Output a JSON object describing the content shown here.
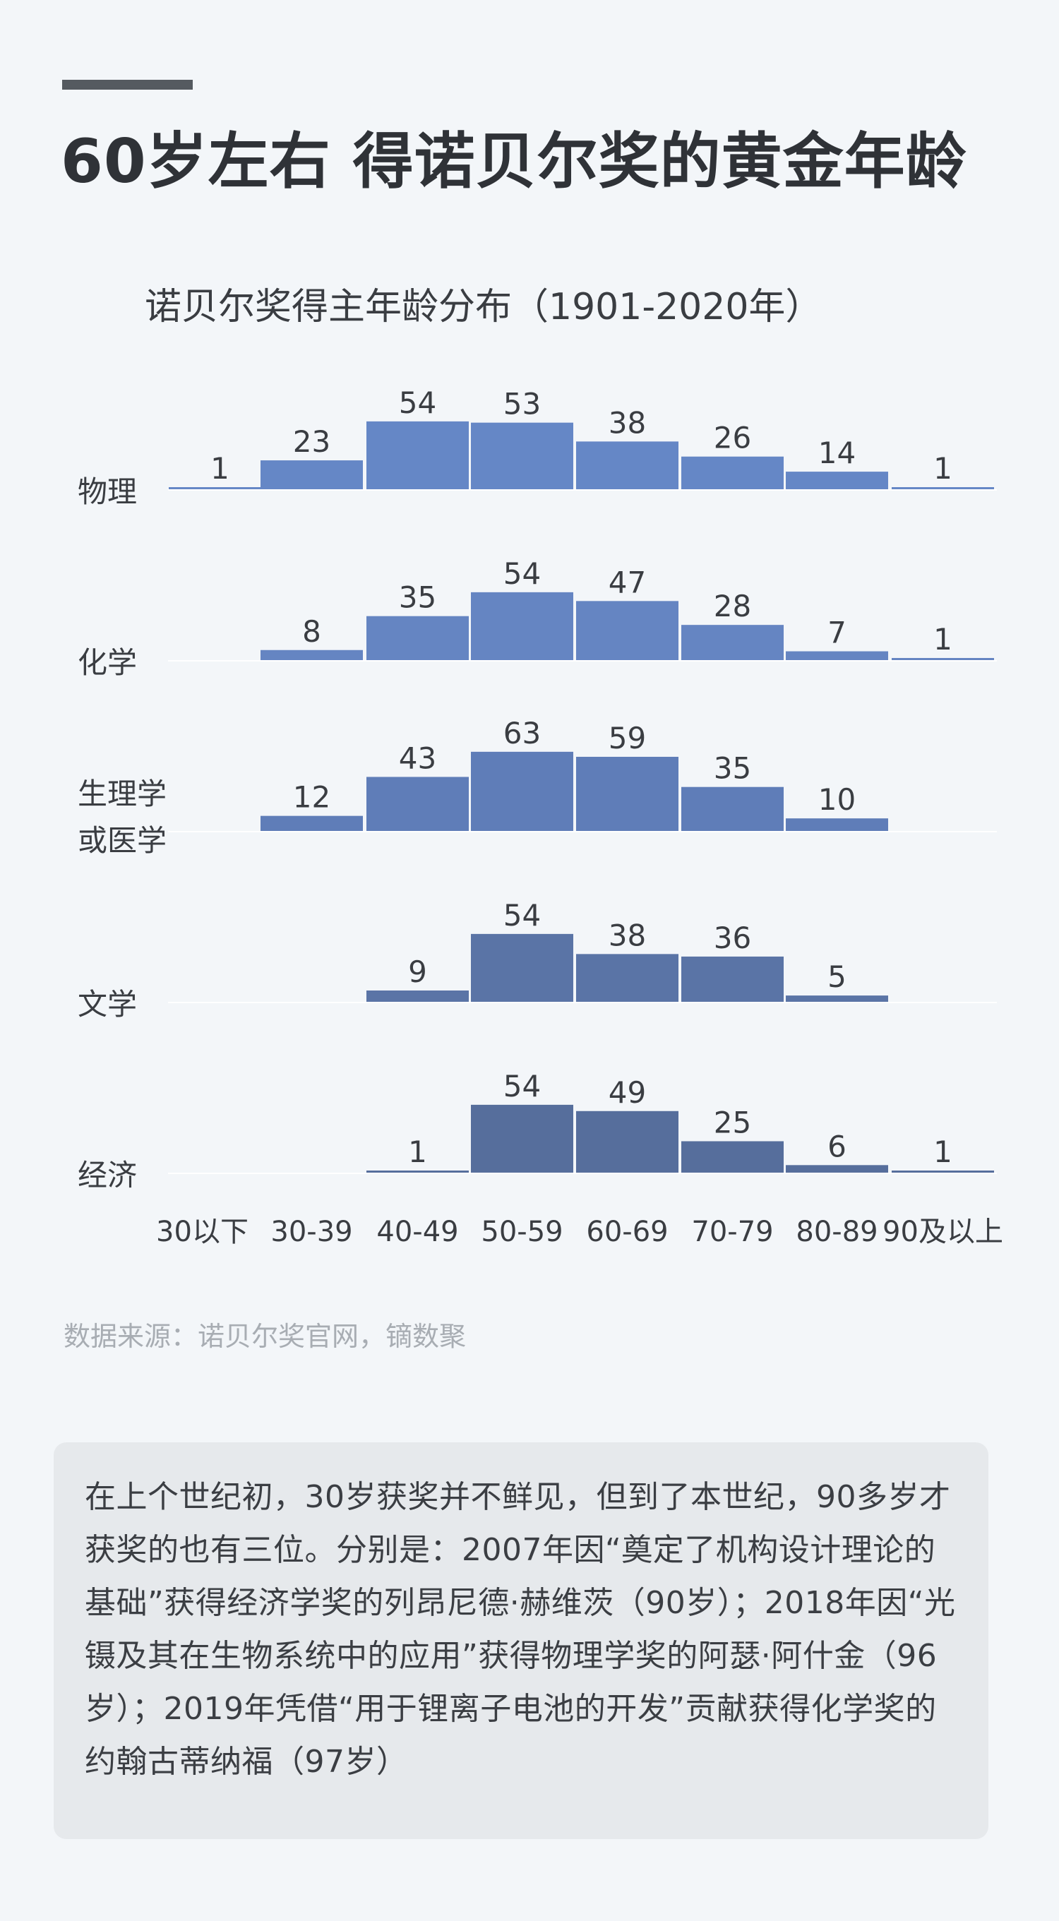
{
  "headline": "60岁左右  得诺贝尔奖的黄金年龄",
  "chart_data": {
    "type": "bar",
    "title": "诺贝尔奖得主年龄分布（1901-2020年）",
    "categories": [
      "30以下",
      "30-39",
      "40-49",
      "50-59",
      "60-69",
      "70-79",
      "80-89",
      "90及以上"
    ],
    "series": [
      {
        "name": "物理",
        "label_lines": [
          "物理"
        ],
        "color": "#6587c6",
        "values": [
          1,
          23,
          54,
          53,
          38,
          26,
          14,
          1
        ]
      },
      {
        "name": "化学",
        "label_lines": [
          "化学"
        ],
        "color": "#6585c2",
        "values": [
          null,
          8,
          35,
          54,
          47,
          28,
          7,
          1
        ]
      },
      {
        "name": "生理学或医学",
        "label_lines": [
          "生理学",
          "或医学"
        ],
        "color": "#5f7db8",
        "values": [
          null,
          12,
          43,
          63,
          59,
          35,
          10,
          null
        ]
      },
      {
        "name": "文学",
        "label_lines": [
          "文学"
        ],
        "color": "#5a74a6",
        "values": [
          null,
          null,
          9,
          54,
          38,
          36,
          5,
          null
        ]
      },
      {
        "name": "经济",
        "label_lines": [
          "经济"
        ],
        "color": "#566e9c",
        "values": [
          null,
          null,
          1,
          54,
          49,
          25,
          6,
          1
        ]
      }
    ],
    "grid": false,
    "legend": "none"
  },
  "source": "数据来源：诺贝尔奖官网，镝数聚",
  "note": "在上个世纪初，30岁获奖并不鲜见，但到了本世纪，90多岁才获奖的也有三位。分别是：2007年因“奠定了机构设计理论的基础”获得经济学奖的列昂尼德·赫维茨（90岁）；2018年因“光镊及其在生物系统中的应用”获得物理学奖的阿瑟·阿什金（96岁）；2019年凭借“用于锂离子电池的开发”贡献获得化学奖的约翰古蒂纳福（97岁）"
}
